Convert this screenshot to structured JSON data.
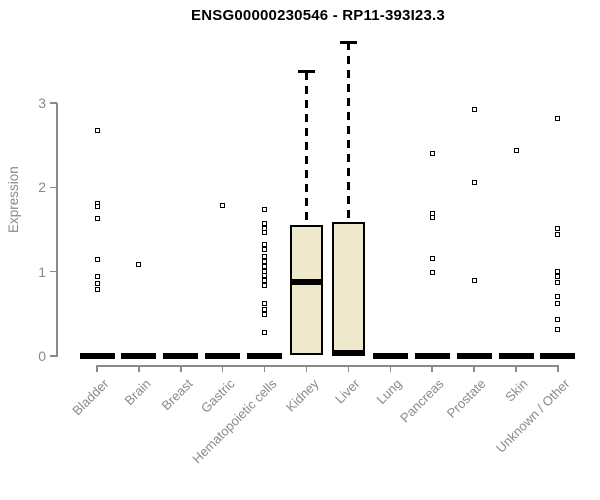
{
  "colors": {
    "box_fill": "#EEE8CD",
    "box_border": "#000000",
    "outlier": "#000000",
    "axis": "#8a8a8a",
    "background": "#ffffff",
    "title_text": "#000000"
  },
  "chart_data": {
    "type": "boxplot",
    "title": "ENSG00000230546 - RP11-393I23.3",
    "ylabel": "Expression",
    "xlabel": "",
    "ylim": [
      0,
      3.8
    ],
    "yticks": [
      0,
      1,
      2,
      3
    ],
    "grid": false,
    "legend": "none",
    "categories": [
      "Bladder",
      "Brain",
      "Breast",
      "Gastric",
      "Hematopoietic cells",
      "Kidney",
      "Liver",
      "Lung",
      "Pancreas",
      "Prostate",
      "Skin",
      "Unknown / Other"
    ],
    "boxes": [
      {
        "category": "Bladder",
        "q1": 0,
        "median": 0,
        "q3": 0,
        "whisker_low": 0,
        "whisker_high": 0,
        "outliers": [
          2.67,
          1.81,
          1.77,
          1.63,
          1.14,
          0.94,
          0.86,
          0.79
        ]
      },
      {
        "category": "Brain",
        "q1": 0,
        "median": 0,
        "q3": 0,
        "whisker_low": 0,
        "whisker_high": 0,
        "outliers": [
          1.08
        ]
      },
      {
        "category": "Breast",
        "q1": 0,
        "median": 0,
        "q3": 0,
        "whisker_low": 0,
        "whisker_high": 0,
        "outliers": []
      },
      {
        "category": "Gastric",
        "q1": 0,
        "median": 0,
        "q3": 0,
        "whisker_low": 0,
        "whisker_high": 0,
        "outliers": [
          1.78
        ]
      },
      {
        "category": "Hematopoietic cells",
        "q1": 0,
        "median": 0,
        "q3": 0,
        "whisker_low": 0,
        "whisker_high": 0,
        "outliers": [
          1.74,
          1.57,
          1.51,
          1.46,
          1.32,
          1.26,
          1.18,
          1.12,
          1.06,
          1.0,
          0.95,
          0.89,
          0.84,
          0.62,
          0.55,
          0.49,
          0.28
        ]
      },
      {
        "category": "Kidney",
        "q1": 0.01,
        "median": 0.88,
        "q3": 1.55,
        "whisker_low": 0,
        "whisker_high": 3.37,
        "outliers": []
      },
      {
        "category": "Liver",
        "q1": 0,
        "median": 0.04,
        "q3": 1.59,
        "whisker_low": 0,
        "whisker_high": 3.72,
        "outliers": []
      },
      {
        "category": "Lung",
        "q1": 0,
        "median": 0,
        "q3": 0,
        "whisker_low": 0,
        "whisker_high": 0,
        "outliers": []
      },
      {
        "category": "Pancreas",
        "q1": 0,
        "median": 0,
        "q3": 0,
        "whisker_low": 0,
        "whisker_high": 0,
        "outliers": [
          2.4,
          1.69,
          1.64,
          1.16,
          0.99
        ]
      },
      {
        "category": "Prostate",
        "q1": 0,
        "median": 0,
        "q3": 0,
        "whisker_low": 0,
        "whisker_high": 0,
        "outliers": [
          2.92,
          2.06,
          0.89
        ]
      },
      {
        "category": "Skin",
        "q1": 0,
        "median": 0,
        "q3": 0,
        "whisker_low": 0,
        "whisker_high": 0,
        "outliers": [
          2.44
        ]
      },
      {
        "category": "Unknown / Other",
        "q1": 0,
        "median": 0,
        "q3": 0,
        "whisker_low": 0,
        "whisker_high": 0,
        "outliers": [
          2.82,
          1.51,
          1.44,
          1.0,
          0.94,
          0.87,
          0.7,
          0.62,
          0.43,
          0.31
        ]
      }
    ]
  }
}
